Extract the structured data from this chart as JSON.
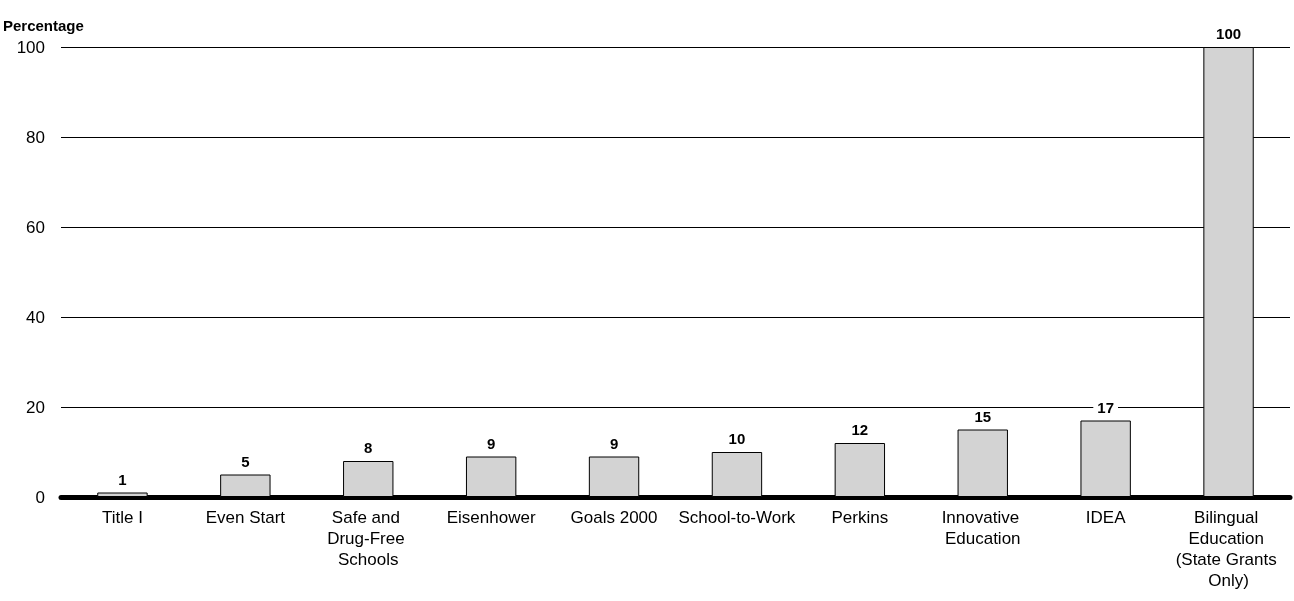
{
  "chart_data": {
    "type": "bar",
    "ylabel": "Percentage",
    "categories": [
      "Title I",
      "Even Start",
      "Safe and Drug-Free Schools",
      "Eisenhower",
      "Goals 2000",
      "School-to-Work",
      "Perkins",
      "Innovative Education",
      "IDEA",
      "Bilingual Education (State Grants Only)"
    ],
    "values": [
      1,
      5,
      8,
      9,
      9,
      10,
      12,
      15,
      17,
      100
    ],
    "color": "#d3d3d3",
    "ylim": [
      0,
      100
    ],
    "yticks": [
      0,
      20,
      40,
      60,
      80,
      100
    ],
    "grid": "y",
    "data_labels": true
  }
}
